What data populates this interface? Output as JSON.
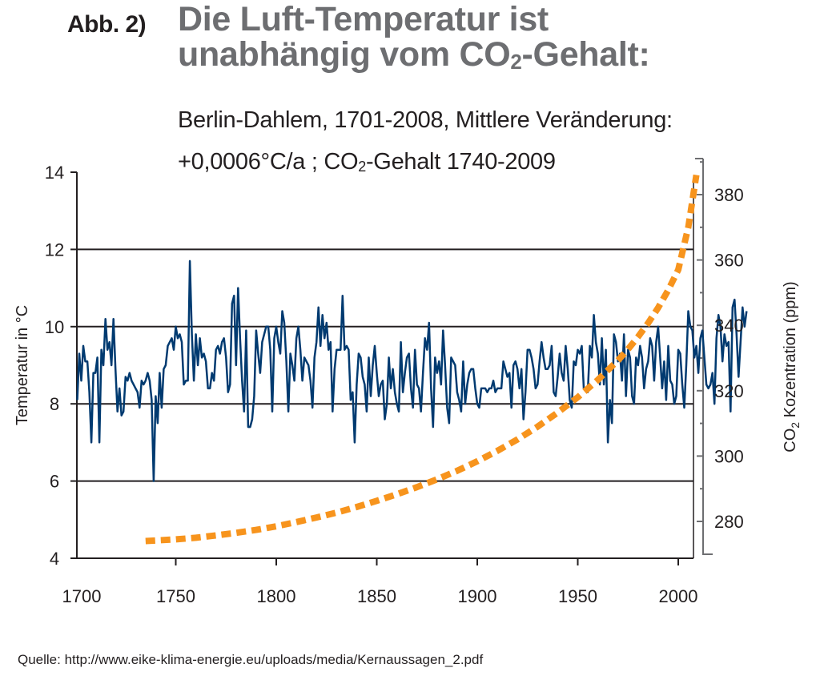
{
  "header": {
    "figure_label": "Abb. 2)",
    "title_line1": "Die Luft-Temperatur ist",
    "title_line2_pre": "unabhängig vom CO",
    "title_line2_sub": "2",
    "title_line2_post": "-Gehalt:",
    "subtitle_line1": "Berlin-Dahlem, 1701-2008, Mittlere Veränderung:",
    "subtitle_line2_pre": "+0,0006°C/a ; CO",
    "subtitle_line2_sub": "2",
    "subtitle_line2_post": "-Gehalt 1740-2009"
  },
  "source": "Quelle: http://www.eike-klima-energie.eu/uploads/media/Kernaussagen_2.pdf",
  "colors": {
    "temperature_line": "#003a70",
    "co2_line": "#f7941d",
    "title_gray": "#6d6e71",
    "text": "#231f20",
    "right_axis": "#6d6e71"
  },
  "chart_data": {
    "type": "line",
    "title": "Die Luft-Temperatur ist unabhängig vom CO2-Gehalt",
    "xlabel": "",
    "ylabel": "Temperatur in °C",
    "ylabel_right_pre": "CO",
    "ylabel_right_sub": "2",
    "ylabel_right_post": " Kozentration (ppm)",
    "xlim": [
      1700,
      2010
    ],
    "ylim": [
      4,
      14
    ],
    "ylim_right": [
      270,
      388
    ],
    "x_ticks": [
      1700,
      1750,
      1800,
      1850,
      1900,
      1950,
      2000
    ],
    "x_tick_labels": [
      "1700",
      "1750",
      "1800",
      "1850",
      "1900",
      "1950",
      "2000"
    ],
    "y_ticks": [
      4,
      6,
      8,
      10,
      12,
      14
    ],
    "y_tick_labels": [
      "4",
      "6",
      "8",
      "10",
      "12",
      "14"
    ],
    "y_right_ticks": [
      280,
      300,
      320,
      340,
      360,
      380
    ],
    "y_right_tick_labels": [
      "280",
      "300",
      "320",
      "340",
      "360",
      "380"
    ],
    "grid": "horizontal at 6, 8, 10, 12",
    "legend": "none",
    "series": [
      {
        "name": "Temperatur Berlin-Dahlem (°C)",
        "axis": "left",
        "style": "solid",
        "x_start": 1701,
        "x_step": 1,
        "values": [
          8.1,
          9.3,
          8.6,
          9.5,
          9.1,
          9.1,
          8.3,
          7.0,
          8.8,
          8.8,
          9.2,
          7.0,
          9.4,
          9.0,
          10.2,
          9.4,
          9.6,
          9.0,
          10.2,
          8.9,
          7.8,
          8.4,
          7.7,
          7.8,
          8.7,
          8.6,
          8.8,
          8.6,
          8.5,
          8.4,
          8.3,
          7.9,
          8.6,
          8.5,
          8.6,
          8.8,
          8.6,
          8.1,
          6.0,
          8.2,
          7.5,
          8.8,
          7.9,
          8.9,
          9.0,
          9.5,
          9.6,
          9.7,
          9.4,
          10.0,
          9.7,
          9.8,
          9.6,
          8.5,
          8.6,
          8.6,
          11.7,
          9.8,
          8.6,
          9.8,
          9.0,
          9.7,
          9.2,
          9.3,
          9.1,
          8.4,
          8.4,
          8.8,
          8.6,
          9.4,
          9.5,
          9.3,
          9.6,
          9.7,
          9.2,
          8.3,
          8.5,
          10.6,
          10.8,
          9.0,
          11.0,
          9.7,
          8.6,
          7.8,
          9.9,
          7.4,
          7.4,
          7.6,
          8.2,
          9.9,
          9.3,
          8.8,
          9.6,
          9.8,
          10.0,
          10.0,
          9.4,
          7.8,
          9.7,
          10.0,
          9.6,
          9.3,
          10.4,
          10.1,
          9.1,
          7.8,
          9.3,
          9.0,
          8.6,
          9.7,
          10.0,
          9.4,
          8.6,
          9.2,
          9.1,
          9.0,
          8.6,
          7.9,
          9.2,
          9.6,
          10.5,
          9.5,
          10.3,
          9.7,
          10.1,
          9.4,
          9.6,
          7.8,
          8.9,
          9.4,
          9.4,
          9.4,
          10.8,
          9.4,
          9.5,
          9.4,
          8.1,
          8.3,
          7.0,
          8.5,
          9.3,
          9.2,
          8.7,
          8.5,
          7.8,
          9.2,
          8.2,
          9.0,
          9.5,
          8.8,
          8.2,
          8.5,
          8.6,
          7.6,
          8.0,
          9.2,
          8.4,
          8.9,
          8.3,
          8.0,
          7.8,
          9.6,
          8.3,
          8.8,
          9.2,
          9.3,
          8.4,
          7.9,
          9.4,
          8.5,
          8.4,
          7.8,
          8.8,
          9.7,
          9.4,
          10.1,
          8.4,
          7.4,
          9.2,
          8.8,
          9.1,
          8.5,
          9.9,
          9.0,
          7.9,
          7.5,
          9.2,
          9.1,
          9.0,
          8.3,
          8.1,
          7.8,
          9.1,
          8.0,
          8.5,
          8.8,
          8.9,
          8.9,
          8.4,
          8.0,
          7.9,
          8.4,
          8.4,
          8.4,
          8.3,
          8.4,
          8.4,
          8.6,
          8.3,
          8.4,
          8.4,
          8.4,
          9.1,
          8.9,
          8.7,
          8.8,
          7.9,
          9.0,
          9.1,
          8.9,
          8.4,
          8.9,
          7.6,
          8.3,
          9.4,
          9.4,
          9.2,
          8.9,
          8.4,
          8.5,
          9.1,
          9.6,
          9.2,
          8.9,
          8.9,
          9.0,
          9.5,
          8.3,
          8.2,
          8.7,
          9.3,
          8.8,
          8.6,
          9.5,
          8.9,
          8.1,
          7.9,
          9.1,
          9.0,
          9.4,
          9.3,
          9.5,
          8.4,
          8.4,
          8.3,
          9.5,
          9.2,
          10.3,
          9.6,
          9.3,
          8.5,
          9.7,
          8.5,
          9.4,
          7.0,
          8.1,
          7.5,
          9.8,
          9.6,
          9.1,
          9.3,
          8.6,
          9.8,
          8.2,
          9.4,
          9.2,
          8.2,
          8.0,
          9.2,
          9.0,
          9.5,
          9.2,
          8.4,
          8.9,
          9.1,
          9.7,
          9.5,
          8.6,
          9.6,
          10.0,
          9.2,
          8.4,
          9.1,
          8.1,
          9.5,
          8.6,
          8.5,
          8.0,
          8.2,
          9.4,
          9.3,
          8.5,
          7.9,
          9.0,
          10.4,
          10.0,
          9.9,
          9.2,
          9.5,
          8.8,
          9.7,
          9.9,
          9.2,
          8.5,
          8.4,
          8.5,
          8.8,
          8.0,
          9.7,
          10.3,
          10.0,
          9.1,
          9.8,
          9.5,
          9.6,
          7.8,
          10.5,
          10.7,
          9.8,
          8.7,
          9.6,
          10.5,
          10.0,
          10.4
        ]
      },
      {
        "name": "CO2-Gehalt 1740-2009 (ppm)",
        "axis": "right",
        "style": "dashed",
        "x": [
          1735,
          1750,
          1760,
          1770,
          1780,
          1790,
          1800,
          1810,
          1820,
          1830,
          1840,
          1850,
          1860,
          1870,
          1880,
          1890,
          1900,
          1910,
          1920,
          1930,
          1940,
          1950,
          1960,
          1970,
          1975,
          1980,
          1985,
          1990,
          1995,
          2000,
          2005,
          2009
        ],
        "values": [
          274,
          274.5,
          275,
          275.7,
          276.5,
          277.4,
          278.5,
          279.8,
          281.2,
          282.7,
          284.4,
          286.3,
          288.3,
          290.5,
          292.9,
          295.5,
          298.4,
          301.6,
          305.1,
          309,
          313.3,
          318,
          323.3,
          329.3,
          332.7,
          336.5,
          340.7,
          345.4,
          350.8,
          357,
          370,
          386
        ]
      }
    ]
  }
}
